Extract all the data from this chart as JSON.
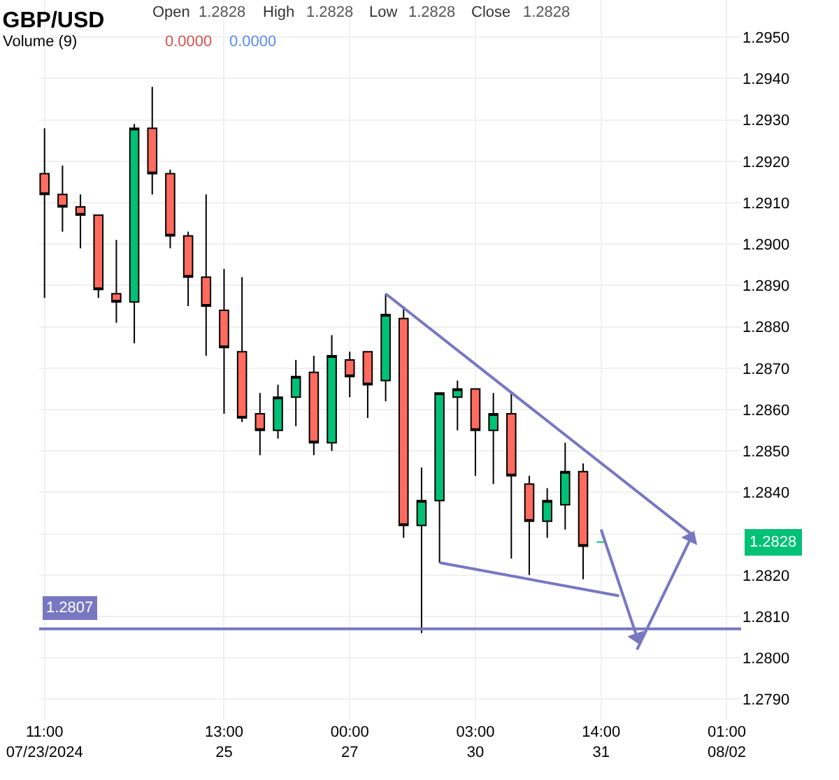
{
  "chart_data": {
    "type": "candlestick",
    "title": "GBP/USD",
    "annotations": [
      "Open",
      "1.2828",
      "High",
      "1.2828",
      "Low",
      "1.2828",
      "Close",
      "1.2828",
      "Volume (9)",
      "0.0000",
      "0.0000",
      {
        "text": "1.2828",
        "y": 1.2828
      }
    ],
    "categories": [
      "11:00\n07/23/2024",
      null,
      null,
      null,
      null,
      null,
      null,
      null,
      null,
      null,
      "13:00\n25",
      null,
      null,
      null,
      null,
      null,
      null,
      "00:00\n27",
      null,
      null,
      null,
      null,
      null,
      null,
      "03:00\n30",
      null,
      null,
      null,
      null,
      null,
      null,
      "14:00\n31",
      null,
      null,
      null,
      null,
      null,
      null,
      "01:00\n08/02"
    ],
    "ohlc": [
      [
        1.2917,
        1.2928,
        1.2887,
        1.2912
      ],
      [
        1.2912,
        1.2919,
        1.2903,
        1.2909
      ],
      [
        1.2909,
        1.2912,
        1.2899,
        1.2907
      ],
      [
        1.2907,
        1.2907,
        1.2887,
        1.2889
      ],
      [
        1.2888,
        1.2901,
        1.2881,
        1.2886
      ],
      [
        1.2886,
        1.2929,
        1.2876,
        1.2928
      ],
      [
        1.2928,
        1.2938,
        1.2912,
        1.2917
      ],
      [
        1.2917,
        1.2918,
        1.2899,
        1.2902
      ],
      [
        1.2902,
        1.2903,
        1.2885,
        1.2892
      ],
      [
        1.2892,
        1.2912,
        1.2873,
        1.2885
      ],
      [
        1.2884,
        1.2894,
        1.2859,
        1.2875
      ],
      [
        1.2874,
        1.2892,
        1.2857,
        1.2858
      ],
      [
        1.2859,
        1.2864,
        1.2849,
        1.2855
      ],
      [
        1.2855,
        1.2866,
        1.2853,
        1.2863
      ],
      [
        1.2863,
        1.2872,
        1.2856,
        1.2868
      ],
      [
        1.2869,
        1.2873,
        1.2849,
        1.2852
      ],
      [
        1.2852,
        1.2878,
        1.285,
        1.2873
      ],
      [
        1.2872,
        1.2874,
        1.2863,
        1.2868
      ],
      [
        1.2874,
        1.2874,
        1.2858,
        1.2866
      ],
      [
        1.2867,
        1.2888,
        1.2862,
        1.2883
      ],
      [
        1.2882,
        1.2885,
        1.2829,
        1.2832
      ],
      [
        1.2832,
        1.2846,
        1.2806,
        1.2838
      ],
      [
        1.2838,
        1.2864,
        1.2823,
        1.2864
      ],
      [
        1.2863,
        1.2867,
        1.2855,
        1.2865
      ],
      [
        1.2865,
        1.2865,
        1.2844,
        1.2855
      ],
      [
        1.2855,
        1.2864,
        1.2842,
        1.2859
      ],
      [
        1.2859,
        1.2864,
        1.2824,
        1.2844
      ],
      [
        1.2842,
        1.2844,
        1.282,
        1.2833
      ],
      [
        1.2833,
        1.2841,
        1.2829,
        1.2838
      ],
      [
        1.2837,
        1.2852,
        1.2831,
        1.2845
      ],
      [
        1.2845,
        1.2847,
        1.2819,
        1.2827
      ],
      [
        1.2828,
        1.2828,
        1.2828,
        1.2828
      ],
      null,
      null,
      null,
      null,
      null,
      null,
      null
    ],
    "colors": [
      "#ff6b5f",
      "#ff6b5f",
      "#ff6b5f",
      "#ff6b5f",
      "#ff6b5f",
      "#00c176",
      "#ff6b5f",
      "#ff6b5f",
      "#ff6b5f",
      "#ff6b5f",
      "#ff6b5f",
      "#ff6b5f",
      "#ff6b5f",
      "#00c176",
      "#00c176",
      "#ff6b5f",
      "#00c176",
      "#ff6b5f",
      "#ff6b5f",
      "#00c176",
      "#ff6b5f",
      "#00c176",
      "#00c176",
      "#00c176",
      "#ff6b5f",
      "#00c176",
      "#ff6b5f",
      "#ff6b5f",
      "#00c176",
      "#00c176",
      "#ff6b5f",
      "#00c176",
      null,
      null,
      null,
      null,
      null,
      null,
      null
    ],
    "series": [
      {
        "type": "line",
        "color": "#7777c2",
        "values": [
          null,
          null,
          null,
          null,
          null,
          null,
          null,
          null,
          null,
          null,
          null,
          null,
          null,
          null,
          null,
          null,
          null,
          null,
          null,
          1.2888,
          null,
          null,
          null,
          null,
          null,
          null,
          null,
          null,
          null,
          null,
          null,
          null,
          null,
          null,
          null,
          null,
          1.283,
          null,
          null
        ]
      },
      {
        "type": "line",
        "color": "#7777c2",
        "values": [
          null,
          null,
          null,
          null,
          null,
          null,
          null,
          null,
          null,
          null,
          null,
          null,
          null,
          null,
          null,
          null,
          null,
          null,
          null,
          null,
          null,
          null,
          1.2823,
          null,
          null,
          null,
          null,
          null,
          null,
          null,
          null,
          null,
          1.2815,
          null,
          null,
          null,
          null,
          null,
          null
        ]
      },
      {
        "type": "line",
        "color": "#7777c2",
        "marker": "triangle",
        "values": [
          null,
          null,
          null,
          null,
          null,
          null,
          null,
          null,
          null,
          null,
          null,
          null,
          null,
          null,
          null,
          null,
          null,
          null,
          null,
          null,
          null,
          null,
          null,
          null,
          null,
          null,
          null,
          null,
          null,
          null,
          null,
          1.2831,
          null,
          1.2805,
          null,
          null,
          null,
          null,
          null
        ]
      },
      {
        "type": "line",
        "color": "#7777c2",
        "marker": "triangle",
        "values": [
          null,
          null,
          null,
          null,
          null,
          null,
          null,
          null,
          null,
          null,
          null,
          null,
          null,
          null,
          null,
          null,
          null,
          null,
          null,
          null,
          null,
          null,
          null,
          null,
          null,
          null,
          null,
          null,
          null,
          null,
          null,
          null,
          null,
          1.2802,
          null,
          null,
          1.2829,
          null,
          null
        ]
      }
    ],
    "ref_lines": [
      {
        "axis": "y",
        "value": 1.2807,
        "label": "1.2807",
        "color": "#7777c2"
      }
    ],
    "ylim": [
      1.2785,
      1.2959
    ],
    "yticks": [
      {
        "value": 1.279,
        "label": "1.2790"
      },
      {
        "value": 1.28,
        "label": "1.2800"
      },
      {
        "value": 1.281,
        "label": "1.2810"
      },
      {
        "value": 1.282,
        "label": "1.2820"
      },
      {
        "value": 1.283,
        "label": null
      },
      {
        "value": 1.284,
        "label": "1.2840"
      },
      {
        "value": 1.285,
        "label": "1.2850"
      },
      {
        "value": 1.286,
        "label": "1.2860"
      },
      {
        "value": 1.287,
        "label": "1.2870"
      },
      {
        "value": 1.288,
        "label": "1.2880"
      },
      {
        "value": 1.289,
        "label": "1.2890"
      },
      {
        "value": 1.29,
        "label": "1.2900"
      },
      {
        "value": 1.291,
        "label": "1.2910"
      },
      {
        "value": 1.292,
        "label": "1.2920"
      },
      {
        "value": 1.293,
        "label": "1.2930"
      },
      {
        "value": 1.294,
        "label": "1.2940"
      },
      {
        "value": 1.295,
        "label": "1.2950"
      }
    ],
    "grid": true
  }
}
